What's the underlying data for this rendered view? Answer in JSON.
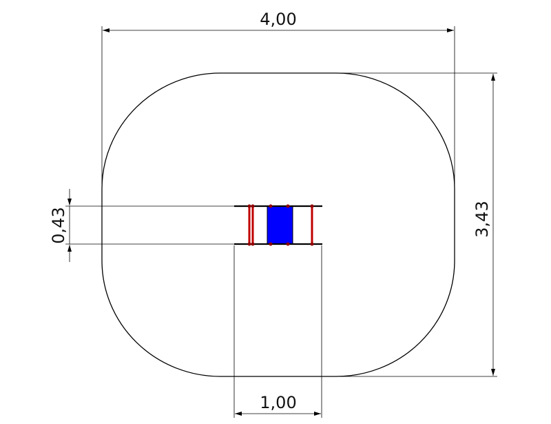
{
  "dimensions": {
    "width": "4,00",
    "height": "3,43",
    "item_depth": "0,43",
    "item_length": "1,00"
  },
  "colors": {
    "outline": "#000000",
    "rung": "#c00000",
    "panel": "#0000ff"
  }
}
